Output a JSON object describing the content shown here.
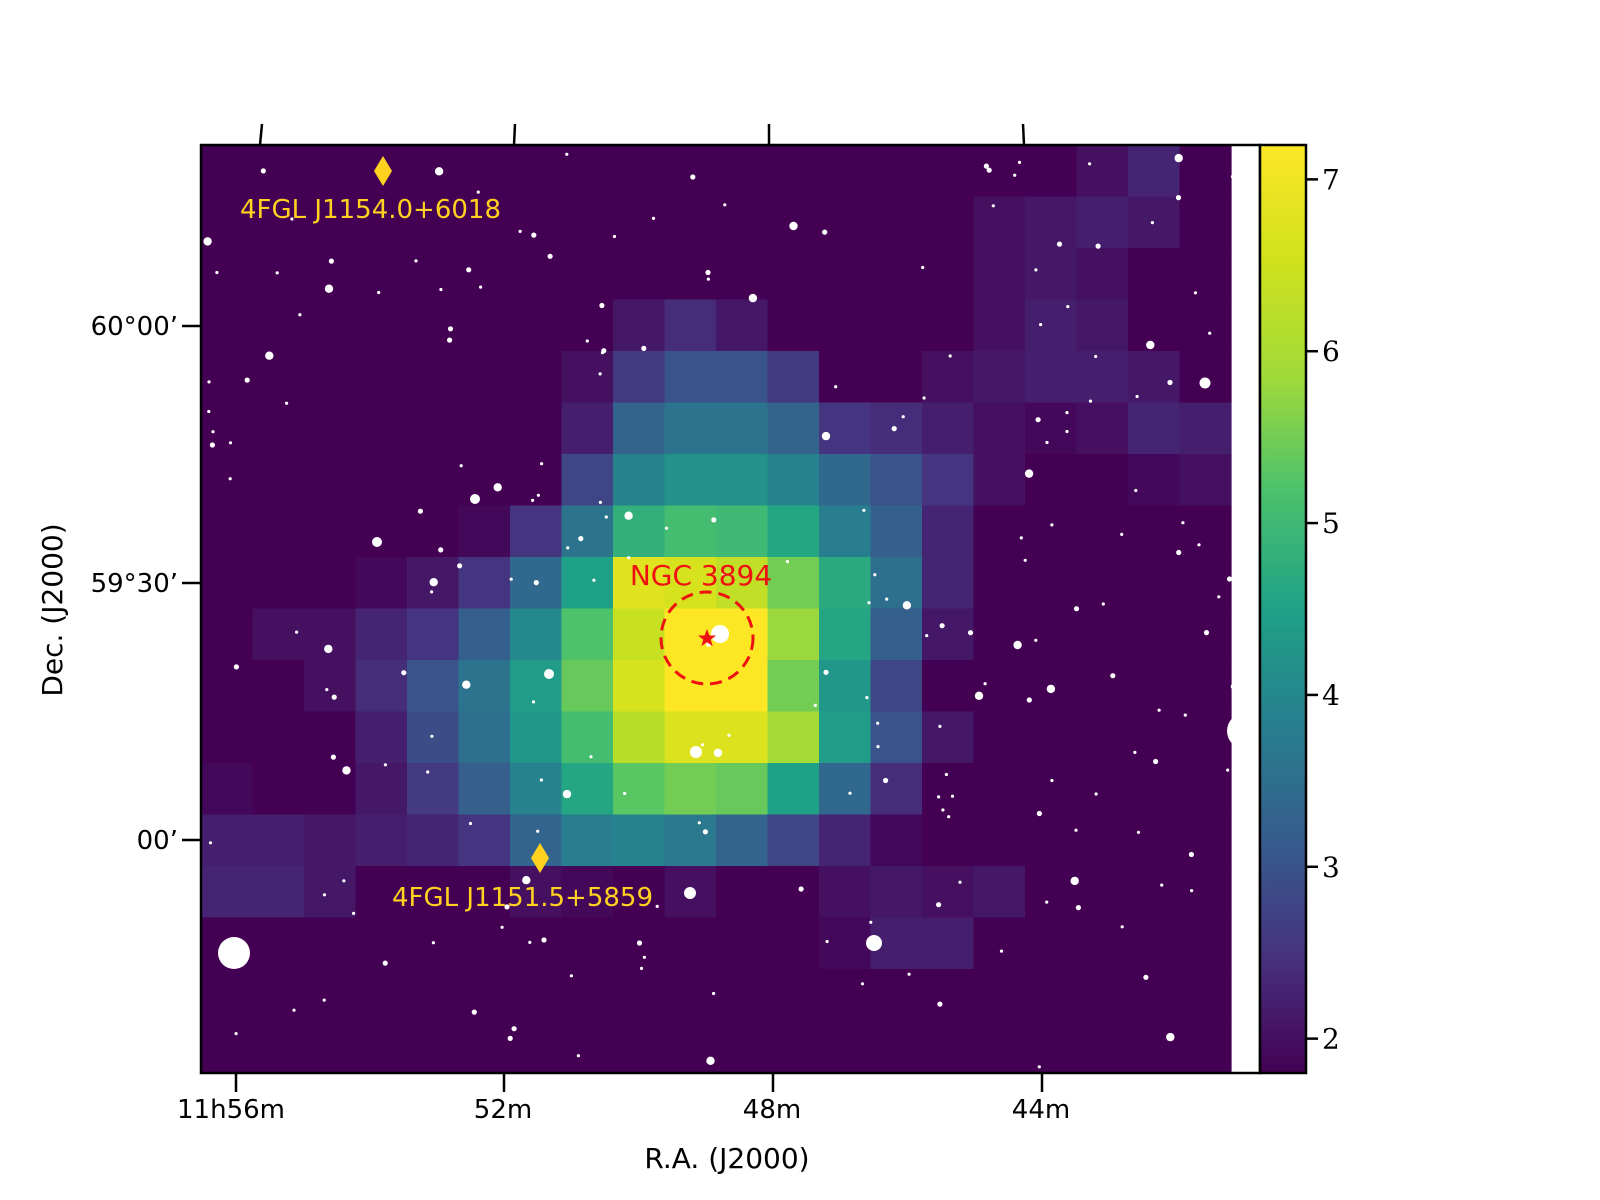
{
  "chart_data": {
    "type": "heatmap",
    "title": "",
    "xlabel": "R.A. (J2000)",
    "ylabel": "Dec.  (J2000)",
    "x_tick_labels": [
      "11h56m",
      "52m",
      "48m",
      "44m"
    ],
    "y_tick_labels": [
      "60°00’",
      "59°30’",
      "00’"
    ],
    "colorbar": {
      "colormap": "viridis",
      "range": [
        1.8,
        7.2
      ],
      "tick_labels": [
        "2",
        "3",
        "4",
        "5",
        "6",
        "7"
      ],
      "tick_values": [
        2,
        3,
        4,
        5,
        6,
        7
      ]
    },
    "grid": false,
    "background_stars": true,
    "ts_map": [
      [
        1.8,
        1.8,
        1.8,
        1.8,
        1.8,
        1.8,
        1.8,
        1.8,
        1.8,
        1.8,
        1.8,
        1.8,
        1.8,
        1.8,
        1.8,
        1.8,
        1.8,
        2.0,
        2.3,
        1.8
      ],
      [
        1.8,
        1.8,
        1.8,
        1.8,
        1.8,
        1.8,
        1.8,
        1.8,
        1.8,
        1.8,
        1.8,
        1.8,
        1.8,
        1.8,
        1.8,
        2.0,
        2.1,
        2.2,
        2.1,
        1.8
      ],
      [
        1.8,
        1.8,
        1.8,
        1.8,
        1.8,
        1.8,
        1.8,
        1.8,
        1.8,
        1.8,
        1.8,
        1.8,
        1.8,
        1.8,
        1.8,
        2.0,
        2.1,
        2.0,
        1.8,
        1.8
      ],
      [
        1.8,
        1.8,
        1.8,
        1.8,
        1.8,
        1.8,
        1.8,
        1.8,
        2.1,
        2.4,
        2.1,
        1.8,
        1.8,
        1.8,
        1.8,
        2.0,
        2.2,
        2.1,
        1.8,
        1.8
      ],
      [
        1.8,
        1.8,
        1.8,
        1.8,
        1.8,
        1.8,
        1.8,
        2.0,
        2.6,
        3.0,
        3.0,
        2.6,
        1.8,
        1.8,
        2.0,
        2.1,
        2.2,
        2.2,
        2.1,
        1.8
      ],
      [
        1.8,
        1.8,
        1.8,
        1.8,
        1.8,
        1.8,
        1.8,
        2.2,
        3.3,
        3.6,
        3.6,
        3.3,
        2.5,
        2.4,
        2.2,
        2.0,
        1.9,
        2.0,
        2.3,
        2.2
      ],
      [
        1.8,
        1.8,
        1.8,
        1.8,
        1.8,
        1.8,
        1.8,
        2.8,
        3.9,
        4.2,
        4.2,
        3.9,
        3.4,
        3.0,
        2.5,
        2.0,
        1.8,
        1.8,
        1.9,
        2.0
      ],
      [
        1.8,
        1.8,
        1.8,
        1.8,
        1.8,
        1.9,
        2.5,
        3.6,
        4.8,
        5.1,
        5.0,
        4.6,
        3.8,
        3.2,
        2.3,
        1.8,
        1.8,
        1.8,
        1.8,
        1.8
      ],
      [
        1.8,
        1.8,
        1.8,
        1.9,
        2.1,
        2.5,
        3.4,
        4.5,
        6.8,
        6.6,
        6.3,
        5.5,
        4.7,
        3.5,
        2.3,
        1.8,
        1.8,
        1.8,
        1.8,
        1.8
      ],
      [
        1.8,
        2.0,
        2.0,
        2.3,
        2.5,
        3.2,
        4.0,
        5.2,
        6.4,
        7.2,
        7.2,
        5.8,
        4.6,
        3.2,
        2.1,
        1.8,
        1.8,
        1.8,
        1.8,
        1.8
      ],
      [
        1.8,
        1.8,
        2.0,
        2.4,
        3.0,
        3.6,
        4.4,
        5.4,
        6.6,
        7.2,
        7.2,
        5.5,
        4.3,
        2.8,
        1.8,
        1.8,
        1.8,
        1.8,
        1.8,
        1.8
      ],
      [
        1.8,
        1.8,
        1.8,
        2.2,
        2.9,
        3.5,
        4.3,
        5.1,
        6.2,
        6.7,
        6.7,
        5.9,
        4.4,
        3.0,
        2.1,
        1.8,
        1.8,
        1.8,
        1.8,
        1.8
      ],
      [
        1.9,
        1.8,
        1.8,
        2.1,
        2.6,
        3.2,
        3.9,
        4.6,
        5.3,
        5.5,
        5.4,
        4.5,
        3.4,
        2.4,
        1.8,
        1.8,
        1.8,
        1.8,
        1.8,
        1.8
      ],
      [
        2.2,
        2.2,
        2.1,
        2.2,
        2.3,
        2.5,
        3.3,
        3.8,
        3.9,
        3.7,
        3.3,
        2.8,
        2.3,
        1.9,
        1.8,
        1.8,
        1.8,
        1.8,
        1.8,
        1.8
      ],
      [
        2.3,
        2.3,
        2.1,
        1.8,
        1.8,
        1.8,
        2.0,
        1.9,
        1.8,
        2.0,
        1.8,
        1.8,
        2.0,
        2.1,
        2.0,
        2.1,
        1.8,
        1.8,
        1.8,
        1.8
      ],
      [
        1.8,
        1.8,
        1.8,
        1.8,
        1.8,
        1.8,
        1.8,
        1.8,
        1.8,
        1.8,
        1.8,
        1.8,
        1.9,
        2.2,
        2.2,
        1.8,
        1.8,
        1.8,
        1.8,
        1.8
      ],
      [
        1.8,
        1.8,
        1.8,
        1.8,
        1.8,
        1.8,
        1.8,
        1.8,
        1.8,
        1.8,
        1.8,
        1.8,
        1.8,
        1.8,
        1.8,
        1.8,
        1.8,
        1.8,
        1.8,
        1.8
      ],
      [
        1.8,
        1.8,
        1.8,
        1.8,
        1.8,
        1.8,
        1.8,
        1.8,
        1.8,
        1.8,
        1.8,
        1.8,
        1.8,
        1.8,
        1.8,
        1.8,
        1.8,
        1.8,
        1.8,
        1.8
      ]
    ],
    "annotations": [
      {
        "name": "4FGL J1154.0+6018",
        "marker": "diamond",
        "color": "#ffd21f"
      },
      {
        "name": "4FGL J1151.5+5859",
        "marker": "diamond",
        "color": "#ffd21f"
      },
      {
        "name": "NGC 3894",
        "marker": "star",
        "circle": "dashed",
        "color": "#ee1111"
      }
    ]
  }
}
